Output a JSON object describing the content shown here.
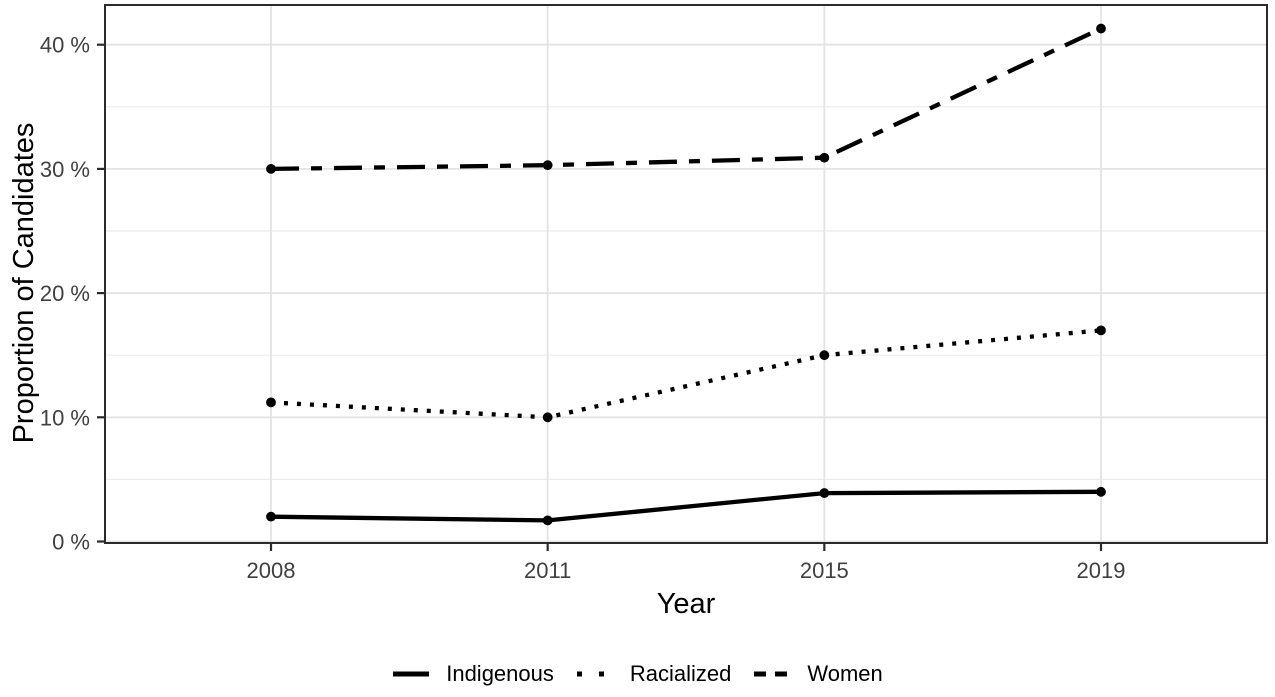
{
  "chart_data": {
    "type": "line",
    "title": "",
    "xlabel": "Year",
    "ylabel": "Proportion of Candidates",
    "x_categories": [
      "2008",
      "2011",
      "2015",
      "2019"
    ],
    "series": [
      {
        "name": "Indigenous",
        "linetype": "solid",
        "values": [
          2.0,
          1.7,
          3.9,
          4.0
        ]
      },
      {
        "name": "Racialized",
        "linetype": "dotted",
        "values": [
          11.2,
          10.0,
          15.0,
          17.0
        ]
      },
      {
        "name": "Women",
        "linetype": "twodash",
        "values": [
          30.0,
          30.3,
          30.9,
          41.3
        ]
      }
    ],
    "y_ticks": [
      {
        "value": 0,
        "label": "0 %"
      },
      {
        "value": 10,
        "label": "10 %"
      },
      {
        "value": 20,
        "label": "20 %"
      },
      {
        "value": 30,
        "label": "30 %"
      },
      {
        "value": 40,
        "label": "40 %"
      }
    ],
    "y_minor_ticks": [
      5,
      15,
      25,
      35
    ],
    "ylim": [
      0,
      43.2
    ],
    "grid": "major-and-minor",
    "legend_position": "bottom",
    "marker": "filled-circle",
    "colors": {
      "series_line": "#000000",
      "point": "#000000",
      "grid_major": "#e3e3e3",
      "grid_minor": "#ebebeb",
      "panel_border": "#2b2b2b",
      "tick_mark": "#2b2b2b",
      "tick_text": "#404040",
      "axis_title_text": "#000000",
      "legend_text": "#000000",
      "background": "#ffffff"
    }
  }
}
